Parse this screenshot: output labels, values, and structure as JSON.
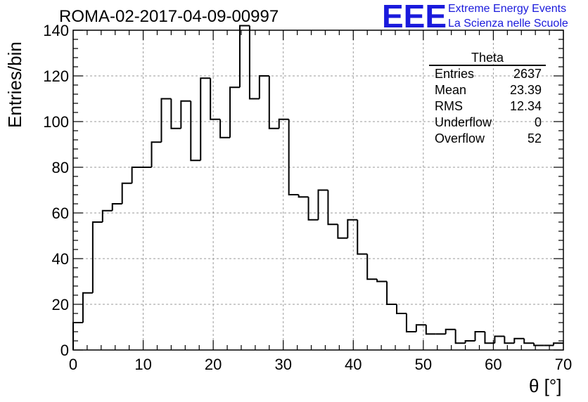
{
  "header": {
    "title": "ROMA-02-2017-04-09-00997",
    "logo_text": "EEE",
    "logo_line1": "Extreme Energy Events",
    "logo_line2": "La Scienza nelle Scuole"
  },
  "stats": {
    "title": "Theta",
    "rows": [
      {
        "label": "Entries",
        "value": "2637"
      },
      {
        "label": "Mean",
        "value": "23.39"
      },
      {
        "label": "RMS",
        "value": "12.34"
      },
      {
        "label": "Underflow",
        "value": "0"
      },
      {
        "label": "Overflow",
        "value": "52"
      }
    ]
  },
  "chart_data": {
    "type": "histogram",
    "title": "ROMA-02-2017-04-09-00997",
    "xlabel": "θ [°]",
    "ylabel": "Entries/bin",
    "xlim": [
      0,
      70
    ],
    "ylim": [
      0,
      140
    ],
    "bin_width": 1.4,
    "grid": true,
    "xticks": [
      0,
      10,
      20,
      30,
      40,
      50,
      60,
      70
    ],
    "yticks": [
      0,
      20,
      40,
      60,
      80,
      100,
      120,
      140
    ],
    "values": [
      12,
      25,
      56,
      61,
      64,
      73,
      80,
      80,
      91,
      110,
      97,
      109,
      83,
      119,
      101,
      93,
      115,
      142,
      110,
      120,
      97,
      101,
      68,
      67,
      57,
      70,
      55,
      49,
      57,
      42,
      31,
      30,
      20,
      16,
      8,
      11,
      7,
      7,
      9,
      3,
      4,
      8,
      3,
      6,
      3,
      5,
      3,
      2,
      2,
      3
    ]
  },
  "colors": {
    "line": "#000000",
    "grid": "#9a9a9a",
    "logo": "#1a1adc"
  }
}
